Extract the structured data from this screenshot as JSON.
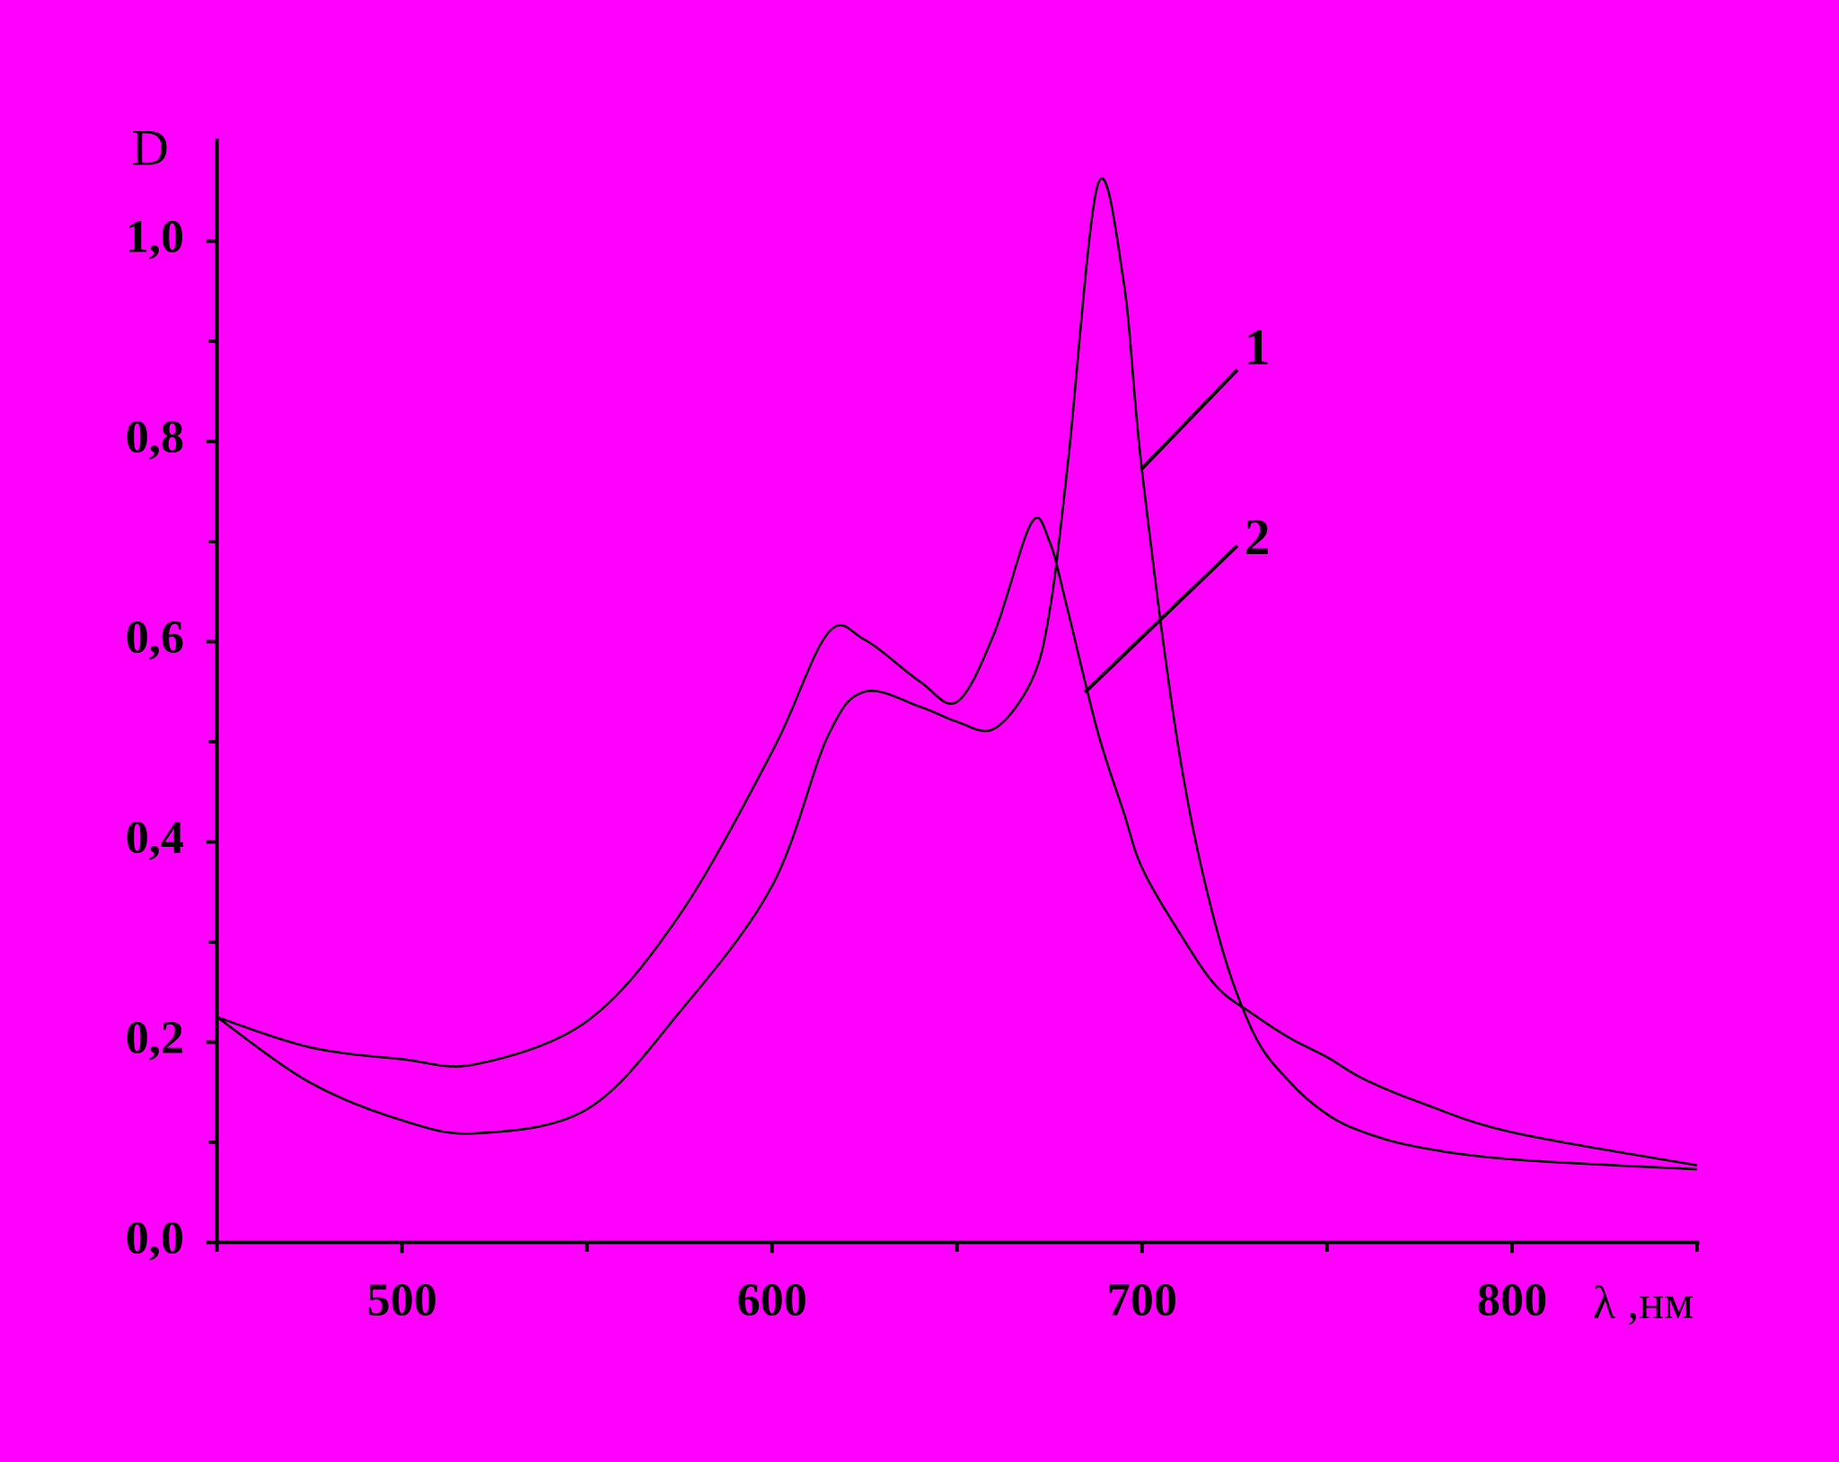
{
  "chart_data": {
    "type": "line",
    "y_label": "D",
    "x_label": "λ ,нм",
    "x": [
      450,
      475,
      500,
      520,
      550,
      575,
      600,
      615,
      625,
      640,
      650,
      660,
      670,
      675,
      680,
      688,
      695,
      700,
      710,
      720,
      730,
      740,
      750,
      760,
      775,
      800,
      850
    ],
    "series": [
      {
        "name": "1",
        "color": "#000000",
        "values": [
          0.225,
          0.16,
          0.122,
          0.109,
          0.133,
          0.23,
          0.356,
          0.505,
          0.55,
          0.535,
          0.52,
          0.513,
          0.56,
          0.63,
          0.78,
          1.056,
          0.96,
          0.77,
          0.49,
          0.315,
          0.21,
          0.16,
          0.128,
          0.11,
          0.095,
          0.083,
          0.073
        ]
      },
      {
        "name": "2",
        "color": "#000000",
        "values": [
          0.225,
          0.195,
          0.183,
          0.178,
          0.221,
          0.327,
          0.49,
          0.608,
          0.602,
          0.56,
          0.54,
          0.608,
          0.718,
          0.7,
          0.63,
          0.51,
          0.43,
          0.374,
          0.31,
          0.256,
          0.228,
          0.204,
          0.185,
          0.163,
          0.14,
          0.11,
          0.077
        ]
      }
    ],
    "xlim": [
      450,
      850
    ],
    "ylim": [
      0,
      1.1
    ],
    "xticks": [
      500,
      600,
      700,
      800
    ],
    "xminorticks": [
      450,
      550,
      650,
      750,
      850
    ],
    "yticks": [
      {
        "value": 0,
        "label": "0,0"
      },
      {
        "value": 0.2,
        "label": "0,2"
      },
      {
        "value": 0.4,
        "label": "0,4"
      },
      {
        "value": 0.6,
        "label": "0,6"
      },
      {
        "value": 0.8,
        "label": "0,8"
      },
      {
        "value": 1.0,
        "label": "1,0"
      }
    ],
    "yminorticks": [
      0.1,
      0.3,
      0.5,
      0.7,
      0.9
    ],
    "background": "#ff00ff"
  }
}
